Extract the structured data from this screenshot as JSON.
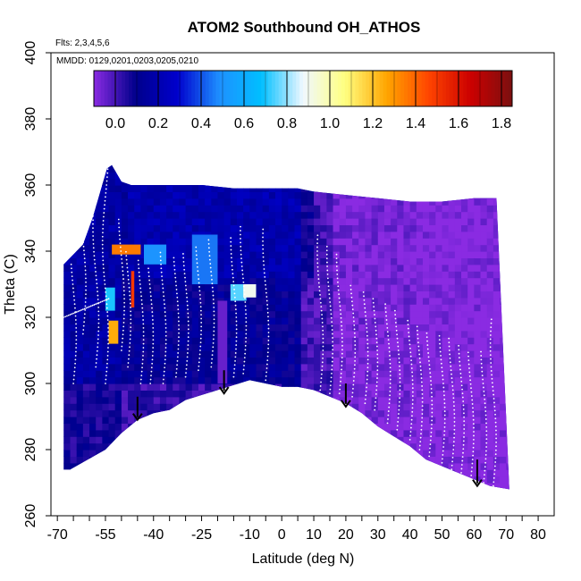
{
  "chart_data": {
    "type": "heatmap",
    "title": "ATOM2 Southbound OH_ATHOS",
    "subtitle_flights": "Flts: 2,3,4,5,6",
    "subtitle_dates": "MMDD: 0129,0201,0203,0205,0210",
    "xlabel": "Latitude (deg N)",
    "ylabel": "Theta (C)",
    "xlim": [
      -70,
      80
    ],
    "ylim": [
      260,
      400
    ],
    "x_ticks": [
      -70,
      -65,
      -60,
      -55,
      -50,
      -45,
      -40,
      -35,
      -30,
      -25,
      -20,
      -15,
      -10,
      -5,
      0,
      5,
      10,
      15,
      20,
      25,
      30,
      35,
      40,
      45,
      50,
      55,
      60,
      65,
      70,
      75,
      80
    ],
    "x_tick_labels": [
      "-70",
      "-55",
      "-40",
      "-25",
      "-10",
      "0",
      "10",
      "20",
      "30",
      "40",
      "50",
      "60",
      "70",
      "80"
    ],
    "x_tick_label_values": [
      -70,
      -55,
      -40,
      -25,
      -10,
      0,
      10,
      20,
      30,
      40,
      50,
      60,
      70,
      80
    ],
    "y_ticks": [
      260,
      280,
      300,
      320,
      340,
      360,
      380,
      400
    ],
    "y_tick_labels": [
      "260",
      "280",
      "300",
      "320",
      "340",
      "360",
      "380",
      "400"
    ],
    "colorbar": {
      "min": -0.1,
      "max": 1.85,
      "tick_values": [
        0.0,
        0.2,
        0.4,
        0.6,
        0.8,
        1.0,
        1.2,
        1.4,
        1.6,
        1.8
      ],
      "tick_labels": [
        "0.0",
        "0.2",
        "0.4",
        "0.6",
        "0.8",
        "1.0",
        "1.2",
        "1.4",
        "1.6",
        "1.8"
      ],
      "colors": [
        "#8a2be2",
        "#00008b",
        "#0000cd",
        "#1e90ff",
        "#00bfff",
        "#f0f8ff",
        "#ffff80",
        "#ffa500",
        "#ff4500",
        "#cc0000",
        "#7b1010"
      ]
    },
    "boundary_top": [
      [
        -68,
        336
      ],
      [
        -66,
        338
      ],
      [
        -62,
        342
      ],
      [
        -59,
        350
      ],
      [
        -56,
        360
      ],
      [
        -54.5,
        365
      ],
      [
        -53,
        366
      ],
      [
        -50,
        361
      ],
      [
        -47,
        360
      ],
      [
        -40,
        360
      ],
      [
        -35,
        360
      ],
      [
        -25,
        360
      ],
      [
        -15,
        359
      ],
      [
        -10,
        359
      ],
      [
        -5,
        359
      ],
      [
        0,
        359
      ],
      [
        5,
        359
      ],
      [
        10,
        358
      ],
      [
        20,
        357
      ],
      [
        30,
        356
      ],
      [
        40,
        355
      ],
      [
        50,
        355
      ],
      [
        60,
        356
      ],
      [
        67,
        356
      ]
    ],
    "boundary_bottom": [
      [
        -68,
        274
      ],
      [
        -66,
        274
      ],
      [
        -55,
        280
      ],
      [
        -50,
        285
      ],
      [
        -45,
        289
      ],
      [
        -40,
        291
      ],
      [
        -35,
        292
      ],
      [
        -30,
        295
      ],
      [
        -20,
        298
      ],
      [
        -10,
        301
      ],
      [
        -5,
        300
      ],
      [
        0,
        299
      ],
      [
        5,
        299
      ],
      [
        10,
        298
      ],
      [
        15,
        296
      ],
      [
        20,
        294
      ],
      [
        25,
        291
      ],
      [
        30,
        287
      ],
      [
        35,
        284
      ],
      [
        40,
        281
      ],
      [
        45,
        277
      ],
      [
        50,
        275
      ],
      [
        55,
        273
      ],
      [
        60,
        271
      ],
      [
        65,
        269
      ],
      [
        71,
        268
      ]
    ],
    "arrows": [
      {
        "lat": -45,
        "theta_top": 296,
        "theta_tip": 289
      },
      {
        "lat": -18,
        "theta_top": 304,
        "theta_tip": 297
      },
      {
        "lat": 20,
        "theta_top": 300,
        "theta_tip": 293
      },
      {
        "lat": 61,
        "theta_top": 277,
        "theta_tip": 269
      }
    ],
    "highlights": [
      {
        "lat0": -53,
        "lat1": -44,
        "th0": 339,
        "th1": 342,
        "value": 1.35
      },
      {
        "lat0": -54,
        "lat1": -51,
        "th0": 312,
        "th1": 319,
        "value": 1.25
      },
      {
        "lat0": -47,
        "lat1": -46,
        "th0": 323,
        "th1": 334,
        "value": 1.5
      },
      {
        "lat0": -55,
        "lat1": -52,
        "th0": 322,
        "th1": 329,
        "value": 0.7
      },
      {
        "lat0": -16,
        "lat1": -11,
        "th0": 325,
        "th1": 330,
        "value": 0.75
      },
      {
        "lat0": -12,
        "lat1": -8,
        "th0": 326,
        "th1": 330,
        "value": 0.9
      },
      {
        "lat0": -43,
        "lat1": -36,
        "th0": 336,
        "th1": 342,
        "value": 0.5
      },
      {
        "lat0": -20,
        "lat1": -17,
        "th0": 300,
        "th1": 325,
        "value": -0.05
      },
      {
        "lat0": -28,
        "lat1": -20,
        "th0": 330,
        "th1": 345,
        "value": 0.45
      }
    ]
  }
}
